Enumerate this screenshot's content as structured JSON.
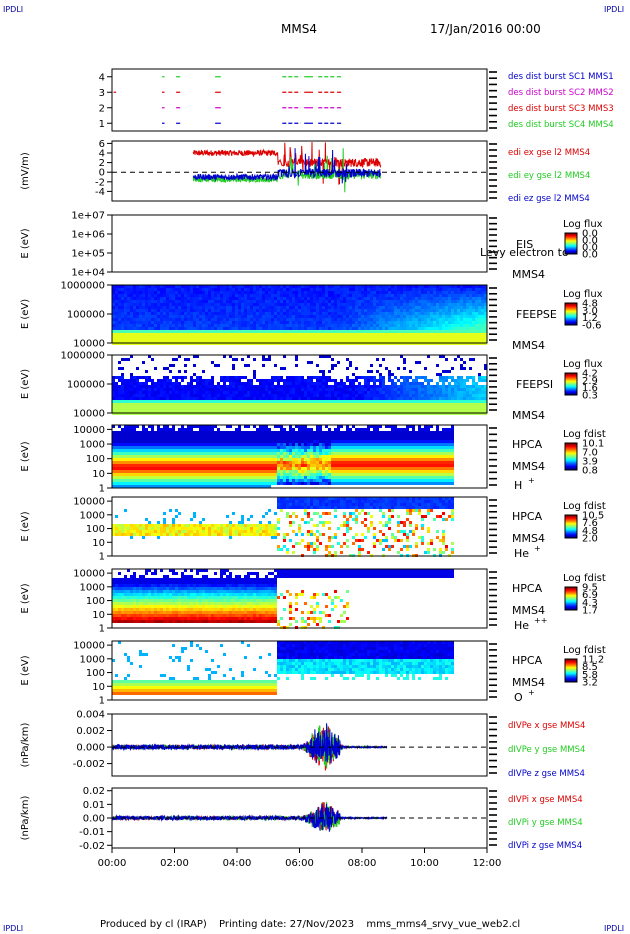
{
  "page": {
    "corner_label": "IPDLI",
    "spacecraft": "MMS4",
    "date_time": "17/Jan/2016 00:00",
    "footer": {
      "produced_by": "Produced by cl (IRAP)",
      "printing_date": "Printing date: 27/Nov/2023",
      "script": "mms_mms4_srvy_vue_web2.cl"
    }
  },
  "colors": {
    "red": "#dd0000",
    "green": "#22cc22",
    "blue": "#0000cc",
    "magenta": "#cc00cc",
    "black": "#000000"
  },
  "chart_data": [
    {
      "id": "burst",
      "type": "scatter",
      "y_ticks": [
        "1",
        "2",
        "3",
        "4"
      ],
      "ylim": [
        0.5,
        4.5
      ],
      "legend": [
        {
          "text": "des dist burst SC1 MMS1",
          "color": "#0000cc"
        },
        {
          "text": "des dist burst SC2 MMS2",
          "color": "#cc00cc"
        },
        {
          "text": "des dist burst SC3 MMS3",
          "color": "#dd0000"
        },
        {
          "text": "des dist burst SC4 MMS4",
          "color": "#22cc22"
        }
      ],
      "intervals_hours": [
        [
          0.05,
          0.1
        ],
        [
          1.6,
          1.65
        ],
        [
          2.05,
          2.15
        ],
        [
          3.3,
          3.45
        ],
        [
          5.45,
          6.0
        ],
        [
          6.15,
          6.4
        ],
        [
          6.6,
          7.1
        ],
        [
          7.2,
          7.3
        ]
      ]
    },
    {
      "id": "edi",
      "type": "line",
      "ylabel": "(mV/m)",
      "y_ticks": [
        "-4",
        "-2",
        "0",
        "2",
        "4",
        "6"
      ],
      "ylim": [
        -6,
        6.5
      ],
      "legend": [
        {
          "text": "edi ex gse l2 MMS4",
          "color": "#dd0000"
        },
        {
          "text": "edi ey gse l2 MMS4",
          "color": "#22cc22"
        },
        {
          "text": "edi ez gse l2 MMS4",
          "color": "#0000cc"
        }
      ],
      "x_range_hours": [
        2.6,
        8.6
      ],
      "series": [
        {
          "name": "ex",
          "color": "#dd0000",
          "level_early": 4.0,
          "level_late": 2.0
        },
        {
          "name": "ey",
          "color": "#22cc22",
          "level_early": -1.5,
          "level_late": -0.5
        },
        {
          "name": "ez",
          "color": "#0000cc",
          "level_early": -1.0,
          "level_late": -0.2
        }
      ]
    },
    {
      "id": "eis",
      "type": "heatmap",
      "ylabel": "E (eV)",
      "y_ticks": [
        "1e+04",
        "1e+05",
        "1e+06",
        "1e+07"
      ],
      "log_y": true,
      "ylim": [
        4,
        7
      ],
      "instrument": "EIS",
      "overlap_text": "Levy electron to",
      "spacecraft": "MMS4",
      "cbar_title": "Log flux",
      "cbar_ticks": [
        "0.0",
        "0.0",
        "0.0",
        "0.0"
      ],
      "empty": true
    },
    {
      "id": "feepse",
      "type": "heatmap",
      "ylabel": "E (eV)",
      "y_ticks": [
        "10000",
        "100000",
        "1000000"
      ],
      "log_y": true,
      "ylim": [
        4,
        6
      ],
      "instrument": "FEEPSE",
      "spacecraft": "MMS4",
      "cbar_title": "Log flux",
      "cbar_ticks": [
        "4.8",
        "3.0",
        "1.2",
        "-0.6"
      ],
      "x_range_hours": [
        0,
        12
      ]
    },
    {
      "id": "feepsi",
      "type": "heatmap",
      "ylabel": "E (eV)",
      "y_ticks": [
        "10000",
        "100000",
        "1000000"
      ],
      "log_y": true,
      "ylim": [
        4,
        6
      ],
      "instrument": "FEEPSI",
      "spacecraft": "MMS4",
      "cbar_title": "Log flux",
      "cbar_ticks": [
        "4.2",
        "2.9",
        "1.6",
        "0.3"
      ],
      "x_range_hours": [
        0,
        12
      ]
    },
    {
      "id": "hpca_h",
      "type": "heatmap",
      "ylabel": "E (eV)",
      "y_ticks": [
        "1",
        "10",
        "100",
        "1000",
        "10000"
      ],
      "log_y": true,
      "ylim": [
        0,
        4.3
      ],
      "instrument": "HPCA",
      "spacecraft": "MMS4",
      "species": "H",
      "charge": "+",
      "cbar_title": "Log fdist",
      "cbar_ticks": [
        "10.1",
        "7.0",
        "3.9",
        "0.8"
      ],
      "x_range_hours": [
        0,
        10.9
      ]
    },
    {
      "id": "hpca_he",
      "type": "heatmap",
      "ylabel": "E (eV)",
      "y_ticks": [
        "1",
        "10",
        "100",
        "1000",
        "10000"
      ],
      "log_y": true,
      "ylim": [
        0,
        4.3
      ],
      "instrument": "HPCA",
      "spacecraft": "MMS4",
      "species": "He",
      "charge": "+",
      "cbar_title": "Log fdist",
      "cbar_ticks": [
        "10.5",
        "7.6",
        "4.8",
        "2.0"
      ],
      "x_range_hours": [
        0,
        10.9
      ]
    },
    {
      "id": "hpca_hepp",
      "type": "heatmap",
      "ylabel": "E (eV)",
      "y_ticks": [
        "1",
        "10",
        "100",
        "1000",
        "10000"
      ],
      "log_y": true,
      "ylim": [
        0,
        4.3
      ],
      "instrument": "HPCA",
      "spacecraft": "MMS4",
      "species": "He",
      "charge": "++",
      "cbar_title": "Log fdist",
      "cbar_ticks": [
        "9.5",
        "6.9",
        "4.3",
        "1.7"
      ],
      "x_range_hours": [
        0,
        10.9
      ]
    },
    {
      "id": "hpca_o",
      "type": "heatmap",
      "ylabel": "E (eV)",
      "y_ticks": [
        "1",
        "10",
        "100",
        "1000",
        "10000"
      ],
      "log_y": true,
      "ylim": [
        0,
        4.3
      ],
      "instrument": "HPCA",
      "spacecraft": "MMS4",
      "species": "O",
      "charge": "+",
      "cbar_title": "Log fdist",
      "cbar_ticks": [
        "11.2",
        "8.5",
        "5.8",
        "3.2"
      ],
      "x_range_hours": [
        0,
        10.9
      ]
    },
    {
      "id": "divpe",
      "type": "line",
      "ylabel": "(nPa/km)",
      "y_ticks": [
        "-0.002",
        "0.000",
        "0.002",
        "0.004"
      ],
      "ylim": [
        -0.0035,
        0.004
      ],
      "legend": [
        {
          "text": "dIVPe x gse MMS4",
          "color": "#dd0000"
        },
        {
          "text": "dIVPe y gse MMS4",
          "color": "#22cc22"
        },
        {
          "text": "dIVPe z gse MMS4",
          "color": "#0000cc"
        }
      ],
      "x_range_hours": [
        0,
        12
      ],
      "noise_level": 0.0003,
      "burst_peak": 0.0035,
      "burst_center_hours": 6.8
    },
    {
      "id": "divpi",
      "type": "line",
      "ylabel": "(nPa/km)",
      "y_ticks": [
        "-0.02",
        "-0.01",
        "0.00",
        "0.01",
        "0.02"
      ],
      "ylim": [
        -0.022,
        0.022
      ],
      "legend": [
        {
          "text": "dIVPi x gse MMS4",
          "color": "#dd0000"
        },
        {
          "text": "dIVPi y gse MMS4",
          "color": "#22cc22"
        },
        {
          "text": "dIVPi z gse MMS4",
          "color": "#0000cc"
        }
      ],
      "x_range_hours": [
        0,
        12
      ],
      "noise_level": 0.0015,
      "burst_peak": 0.013,
      "burst_center_hours": 6.8
    }
  ],
  "x_axis": {
    "ticks": [
      "00:00",
      "02:00",
      "04:00",
      "06:00",
      "08:00",
      "10:00",
      "12:00"
    ],
    "xlim_hours": [
      0,
      12
    ]
  }
}
